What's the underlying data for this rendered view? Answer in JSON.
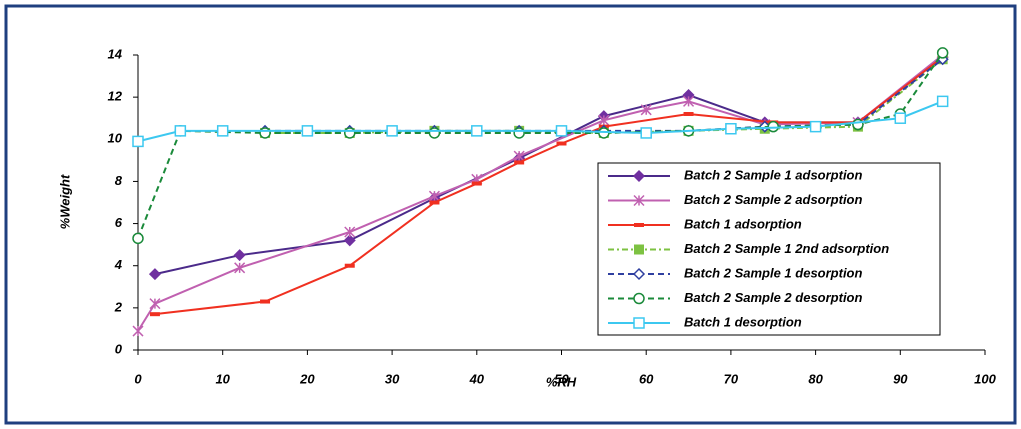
{
  "chart_data": {
    "type": "line",
    "x_label": "%RH",
    "y_label": "%Weight",
    "xlim": [
      0,
      100
    ],
    "xticks": [
      0,
      10,
      20,
      30,
      40,
      50,
      60,
      70,
      80,
      90,
      100
    ],
    "ylim": [
      0,
      14
    ],
    "yticks": [
      0,
      2,
      4,
      6,
      8,
      10,
      12,
      14
    ],
    "grid": false,
    "legend": "right",
    "series": [
      {
        "name": "Batch 2 Sample 1 adsorption",
        "color": "#4b2a8a",
        "marker_color": "#7030a0",
        "marker": "diamond",
        "dash": "solid",
        "x": [
          2,
          12,
          25,
          35,
          45,
          55,
          65,
          74,
          85,
          95
        ],
        "values": [
          3.6,
          4.5,
          5.2,
          7.2,
          9.1,
          11.1,
          12.1,
          10.8,
          10.8,
          13.9
        ]
      },
      {
        "name": "Batch 2 Sample 2 adsorption",
        "color": "#c060b0",
        "marker_color": "#c060b0",
        "marker": "star",
        "dash": "solid",
        "x": [
          0,
          2,
          12,
          25,
          35,
          40,
          45,
          55,
          60,
          65,
          74,
          85,
          95
        ],
        "values": [
          0.9,
          2.2,
          3.9,
          5.6,
          7.3,
          8.1,
          9.2,
          10.9,
          11.4,
          11.8,
          10.7,
          10.8,
          14.0
        ]
      },
      {
        "name": "Batch 1 adsorption",
        "color": "#f03020",
        "marker_color": "#f03020",
        "marker": "dash",
        "dash": "solid",
        "x": [
          2,
          15,
          25,
          35,
          40,
          45,
          50,
          55,
          65,
          75,
          85,
          95
        ],
        "values": [
          1.7,
          2.3,
          4.0,
          7.0,
          7.9,
          8.9,
          9.8,
          10.6,
          11.2,
          10.8,
          10.8,
          13.9
        ]
      },
      {
        "name": "Batch 2 Sample 1 2nd adsorption",
        "color": "#7dc242",
        "marker_color": "#7dc242",
        "marker": "square",
        "dash": "dashdot",
        "x": [
          15,
          25,
          35,
          45,
          55,
          65,
          74,
          85,
          95
        ],
        "values": [
          10.3,
          10.3,
          10.4,
          10.4,
          10.3,
          10.4,
          10.5,
          10.6,
          13.8
        ]
      },
      {
        "name": "Batch 2 Sample 1 desorption",
        "color": "#2f3fa0",
        "marker_color": "#2f3fa0",
        "marker": "diamond-open",
        "dash": "dash",
        "x": [
          15,
          25,
          35,
          45,
          55,
          65,
          74,
          85,
          95
        ],
        "values": [
          10.4,
          10.4,
          10.4,
          10.4,
          10.4,
          10.4,
          10.6,
          10.7,
          13.8
        ]
      },
      {
        "name": "Batch 2 Sample 2 desorption",
        "color": "#1a8a3a",
        "marker_color": "#1a8a3a",
        "marker": "circle-open",
        "dash": "dash",
        "x": [
          0,
          5,
          15,
          25,
          35,
          45,
          55,
          65,
          75,
          85,
          90,
          95
        ],
        "values": [
          5.3,
          10.4,
          10.3,
          10.3,
          10.3,
          10.3,
          10.3,
          10.4,
          10.6,
          10.7,
          11.2,
          14.1
        ]
      },
      {
        "name": "Batch 1 desorption",
        "color": "#3cc8f0",
        "marker_color": "#3cc8f0",
        "marker": "square-open",
        "dash": "solid",
        "x": [
          0,
          5,
          10,
          20,
          30,
          40,
          50,
          60,
          70,
          80,
          90,
          95
        ],
        "values": [
          9.9,
          10.4,
          10.4,
          10.4,
          10.4,
          10.4,
          10.4,
          10.3,
          10.5,
          10.6,
          11.0,
          11.8
        ]
      }
    ]
  }
}
